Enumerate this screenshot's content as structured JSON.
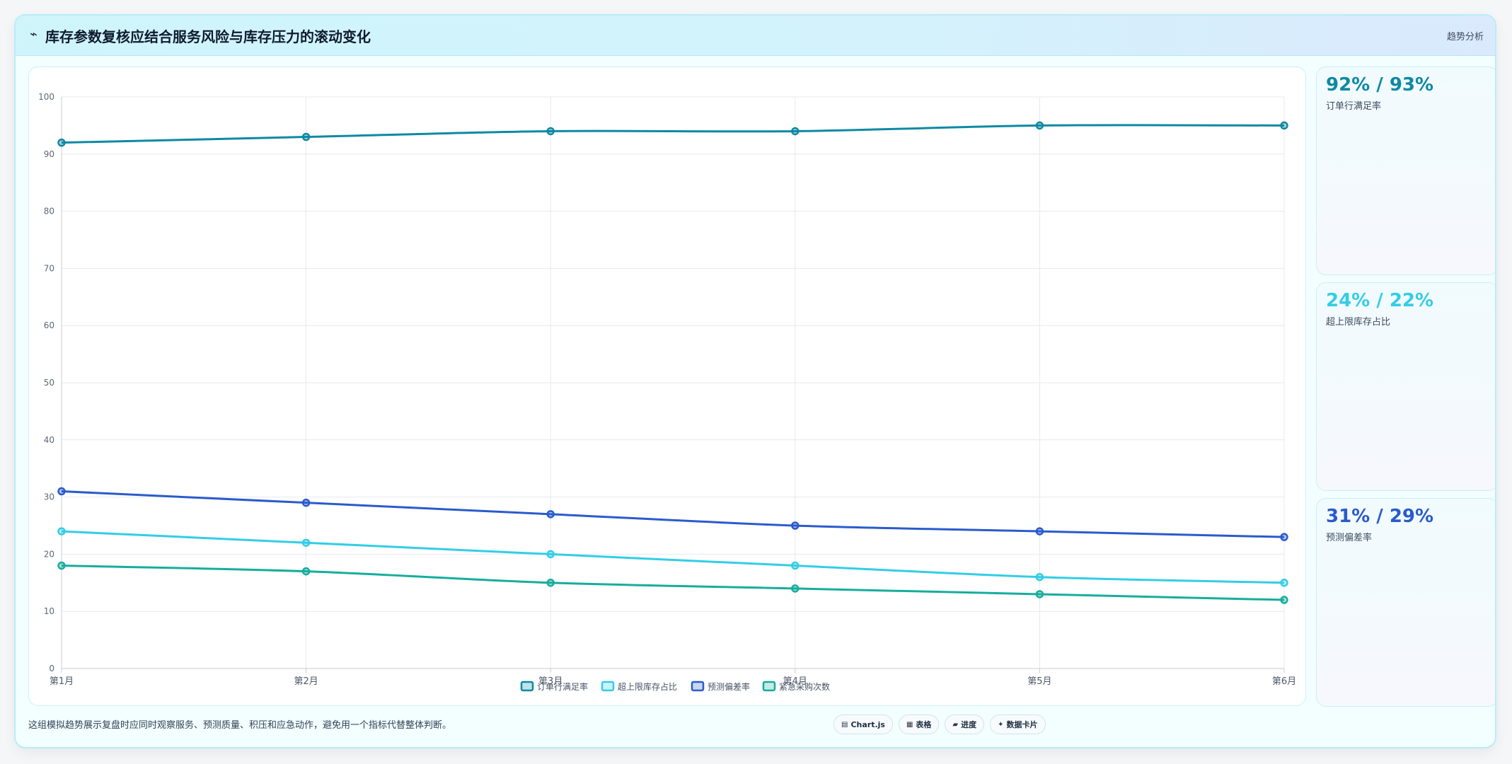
{
  "header": {
    "title_icon": "trend-line-icon",
    "title": "库存参数复核应结合服务风险与库存压力的滚动变化",
    "tag": "趋势分析"
  },
  "chart_data": {
    "type": "line",
    "categories": [
      "第1月",
      "第2月",
      "第3月",
      "第4月",
      "第5月",
      "第6月"
    ],
    "ylim": [
      0,
      100
    ],
    "yticks": [
      0,
      10,
      20,
      30,
      40,
      50,
      60,
      70,
      80,
      90,
      100
    ],
    "grid": true,
    "legend_position": "bottom",
    "series": [
      {
        "name": "订单行满足率",
        "color": "#0e89a3",
        "values": [
          92,
          93,
          94,
          94,
          95,
          95
        ]
      },
      {
        "name": "超上限库存占比",
        "color": "#33cde6",
        "values": [
          24,
          22,
          20,
          18,
          16,
          15
        ]
      },
      {
        "name": "预测偏差率",
        "color": "#2a5bcc",
        "values": [
          31,
          29,
          27,
          25,
          24,
          23
        ]
      },
      {
        "name": "紧急采购次数",
        "color": "#17ad9c",
        "values": [
          18,
          17,
          15,
          14,
          13,
          12
        ]
      }
    ]
  },
  "side_cards": [
    {
      "value": "92% / 93%",
      "label": "订单行满足率",
      "color": "#0e89a3"
    },
    {
      "value": "24% / 22%",
      "label": "超上限库存占比",
      "color": "#33cde6"
    },
    {
      "value": "31% / 29%",
      "label": "预测偏差率",
      "color": "#2a5bcc"
    }
  ],
  "footer": {
    "note": "这组模拟趋势展示复盘时应同时观察服务、预测质量、积压和应急动作，避免用一个指标代替整体判断。",
    "buttons": [
      {
        "icon": "chart-icon",
        "glyph": "▤",
        "label": "Chart.js"
      },
      {
        "icon": "table-icon",
        "glyph": "▦",
        "label": "表格"
      },
      {
        "icon": "progress-icon",
        "glyph": "▰",
        "label": "进度"
      },
      {
        "icon": "sparkle-icon",
        "glyph": "✦",
        "label": "数据卡片"
      }
    ]
  }
}
